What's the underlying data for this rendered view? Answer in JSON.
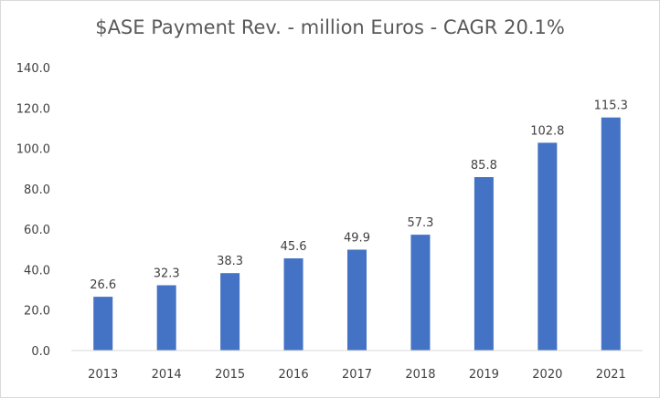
{
  "chart_data": {
    "type": "bar",
    "title": "$ASE Payment Rev. - million Euros - CAGR 20.1%",
    "categories": [
      "2013",
      "2014",
      "2015",
      "2016",
      "2017",
      "2018",
      "2019",
      "2020",
      "2021"
    ],
    "values": [
      26.6,
      32.3,
      38.3,
      45.6,
      49.9,
      57.3,
      85.8,
      102.8,
      115.3
    ],
    "data_labels": [
      "26.6",
      "32.3",
      "38.3",
      "45.6",
      "49.9",
      "57.3",
      "85.8",
      "102.8",
      "115.3"
    ],
    "yticks": [
      "0.0",
      "20.0",
      "40.0",
      "60.0",
      "80.0",
      "100.0",
      "120.0",
      "140.0"
    ],
    "ylim": [
      0,
      140
    ],
    "xlabel": "",
    "ylabel": "",
    "grid": false,
    "legend": "none",
    "bar_color": "#4472c4"
  }
}
